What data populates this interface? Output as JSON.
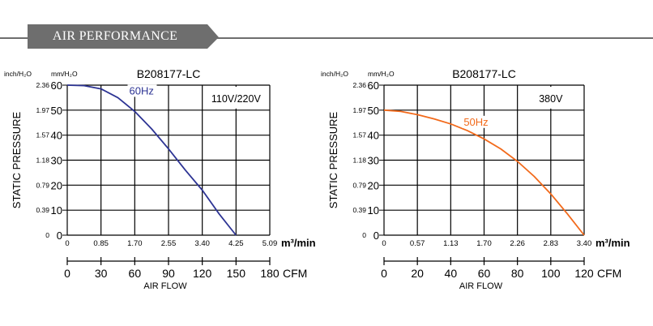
{
  "header": {
    "title": "AIR PERFORMANCE"
  },
  "colors": {
    "banner": "#6e6e6e",
    "curve_left": "#2d3494",
    "curve_right": "#f26a1b",
    "grid": "#000000"
  },
  "chart_data": [
    {
      "type": "line",
      "title": "B208177-LC",
      "voltage_label": "110V/220V",
      "ylabel": "STATIC PRESSURE",
      "xlabel": "AIR FLOW",
      "y_units": [
        "inch/H₂O",
        "mm/H₂O"
      ],
      "x_units": [
        "m³/min",
        "CFM"
      ],
      "ylim": [
        0,
        60
      ],
      "y_ticks_mm": [
        "60",
        "50",
        "40",
        "30",
        "20",
        "10",
        "0"
      ],
      "y_ticks_inch": [
        "2.36",
        "1.97",
        "1.57",
        "1.18",
        "0.79",
        "0.39",
        "0"
      ],
      "xlim_cfm": [
        0,
        180
      ],
      "x_ticks_m3": [
        "0",
        "0.85",
        "1.70",
        "2.55",
        "3.40",
        "4.25",
        "5.09"
      ],
      "x_ticks_cfm": [
        "0",
        "30",
        "60",
        "90",
        "120",
        "150",
        "180"
      ],
      "grid": true,
      "series": [
        {
          "name": "60Hz",
          "x": [
            0,
            15,
            30,
            45,
            60,
            75,
            90,
            105,
            120,
            135,
            150
          ],
          "y": [
            60,
            59.8,
            58.5,
            55,
            49.5,
            42.5,
            34.5,
            26,
            18,
            8.5,
            0
          ]
        }
      ]
    },
    {
      "type": "line",
      "title": "B208177-LC",
      "voltage_label": "380V",
      "ylabel": "STATIC PRESSURE",
      "xlabel": "AIR FLOW",
      "y_units": [
        "inch/H₂O",
        "mm/H₂O"
      ],
      "x_units": [
        "m³/min",
        "CFM"
      ],
      "ylim": [
        0,
        60
      ],
      "y_ticks_mm": [
        "60",
        "50",
        "40",
        "30",
        "20",
        "10",
        "0"
      ],
      "y_ticks_inch": [
        "2.36",
        "1.97",
        "1.57",
        "1.18",
        "0.79",
        "0.39",
        "0"
      ],
      "xlim_cfm": [
        0,
        120
      ],
      "x_ticks_m3": [
        "0",
        "0.57",
        "1.13",
        "1.70",
        "2.26",
        "2.83",
        "3.40"
      ],
      "x_ticks_cfm": [
        "0",
        "20",
        "40",
        "60",
        "80",
        "100",
        "120"
      ],
      "grid": true,
      "series": [
        {
          "name": "50Hz",
          "x": [
            0,
            10,
            20,
            30,
            40,
            50,
            60,
            70,
            80,
            90,
            100,
            110,
            120
          ],
          "y": [
            50,
            49.5,
            48.2,
            46.5,
            44.5,
            41.8,
            38.5,
            34.5,
            29.5,
            23.5,
            16.5,
            8.5,
            0
          ]
        }
      ]
    }
  ]
}
